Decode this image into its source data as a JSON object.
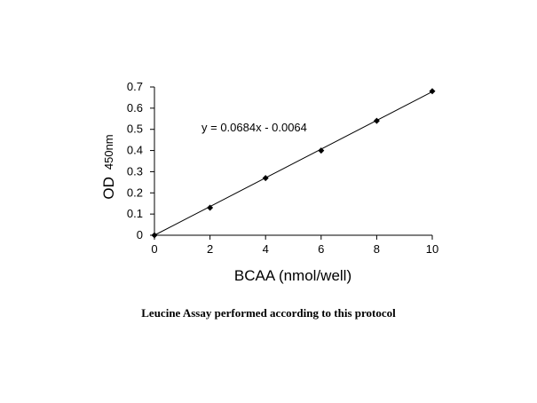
{
  "chart_data": {
    "type": "scatter",
    "x": [
      0,
      2,
      4,
      6,
      8,
      10
    ],
    "y": [
      0,
      0.13,
      0.27,
      0.4,
      0.54,
      0.68
    ],
    "xlim": [
      0,
      10
    ],
    "ylim": [
      0,
      0.7
    ],
    "xticks": [
      "0",
      "2",
      "4",
      "6",
      "8",
      "10"
    ],
    "yticks": [
      "0",
      "0.1",
      "0.2",
      "0.3",
      "0.4",
      "0.5",
      "0.6",
      "0.7"
    ],
    "xlabel": "BCAA (nmol/well)",
    "ylabel_main": "OD",
    "ylabel_sub": "450nm",
    "trendline": {
      "slope": 0.0684,
      "intercept": -0.0064,
      "equation": "y = 0.0684x - 0.0064"
    },
    "grid": false,
    "marker": "diamond",
    "color": "#000000"
  },
  "caption": "Leucine Assay performed according to this protocol"
}
